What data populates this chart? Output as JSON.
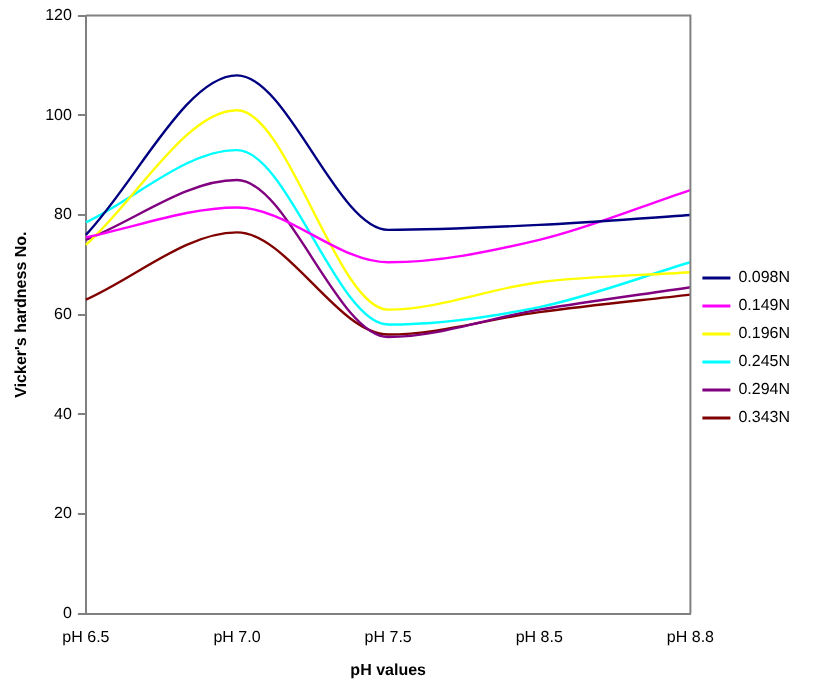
{
  "chart_data": {
    "type": "line",
    "xlabel": "pH values",
    "ylabel": "Vicker's hardness No.",
    "categories": [
      "pH 6.5",
      "pH 7.0",
      "pH 7.5",
      "pH 8.5",
      "pH 8.8"
    ],
    "series": [
      {
        "name": "0.098N",
        "color": "#000080",
        "values": [
          76,
          108,
          77,
          78,
          80
        ]
      },
      {
        "name": "0.149N",
        "color": "#ff00ff",
        "values": [
          75.5,
          81.5,
          70.5,
          75,
          85
        ]
      },
      {
        "name": "0.196N",
        "color": "#ffff00",
        "values": [
          74,
          101,
          61,
          66.5,
          68.5
        ]
      },
      {
        "name": "0.245N",
        "color": "#00ffff",
        "values": [
          78.5,
          93,
          58,
          61.5,
          70.5
        ]
      },
      {
        "name": "0.294N",
        "color": "#800080",
        "values": [
          75,
          87,
          55.5,
          61,
          65.5
        ]
      },
      {
        "name": "0.343N",
        "color": "#800000",
        "values": [
          63,
          76.5,
          56,
          60.5,
          64
        ]
      }
    ],
    "ylim": [
      0,
      120
    ],
    "yticks": [
      0,
      20,
      40,
      60,
      80,
      100,
      120
    ],
    "grid": false,
    "legend": "right",
    "marker": "none",
    "line_style": "solid"
  }
}
